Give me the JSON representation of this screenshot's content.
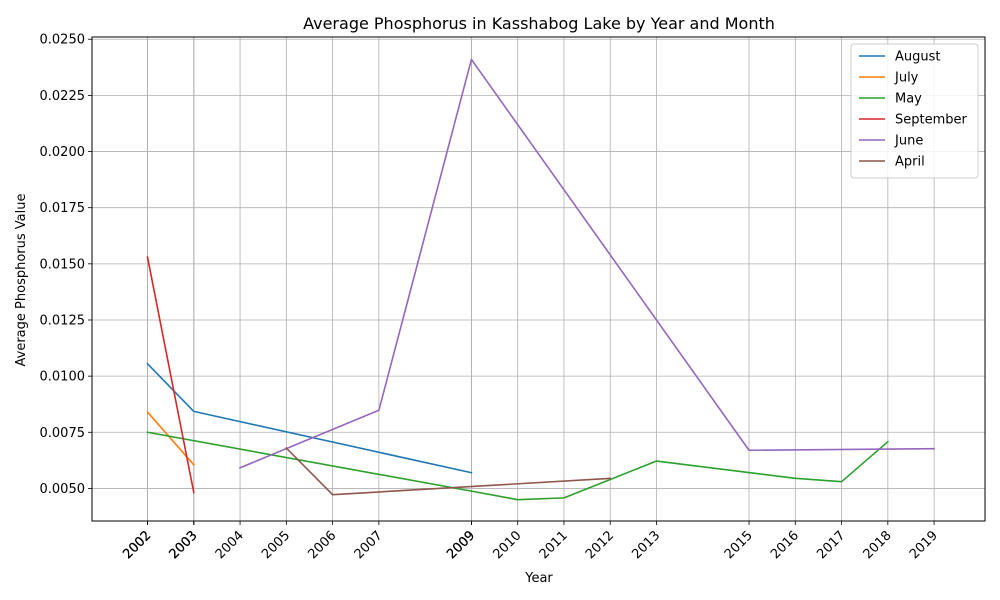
{
  "chart_data": {
    "type": "line",
    "title": "Average Phosphorus in Kasshabog Lake by Year and Month",
    "xlabel": "Year",
    "ylabel": "Average Phosphorus Value",
    "xlim": [
      2000.8,
      2020.1
    ],
    "ylim": [
      0.00355,
      0.0251
    ],
    "x_ticks": [
      "2002",
      "2002",
      "2002",
      "2003",
      "2003",
      "2003",
      "2004",
      "2005",
      "2006",
      "2007",
      "2009",
      "2009",
      "2009",
      "2010",
      "2011",
      "2012",
      "2013",
      "2015",
      "2016",
      "2017",
      "2018",
      "2019"
    ],
    "x_tick_values": [
      2002,
      2002,
      2002,
      2003,
      2003,
      2003,
      2004,
      2005,
      2006,
      2007,
      2009,
      2009,
      2009,
      2010,
      2011,
      2012,
      2013,
      2015,
      2016,
      2017,
      2018,
      2019
    ],
    "y_ticks": [
      "0.0050",
      "0.0075",
      "0.0100",
      "0.0125",
      "0.0150",
      "0.0175",
      "0.0200",
      "0.0225",
      "0.0250"
    ],
    "y_tick_values": [
      0.005,
      0.0075,
      0.01,
      0.0125,
      0.015,
      0.0175,
      0.02,
      0.0225,
      0.025
    ],
    "grid": true,
    "legend_position": "top-right",
    "series": [
      {
        "name": "August",
        "color": "#1f77b4",
        "x": [
          2002,
          2003,
          2009
        ],
        "y": [
          0.01055,
          0.00843,
          0.0057
        ]
      },
      {
        "name": "July",
        "color": "#ff7f0e",
        "x": [
          2002,
          2003
        ],
        "y": [
          0.0084,
          0.00605
        ]
      },
      {
        "name": "May",
        "color": "#2ca02c",
        "x": [
          2002,
          2009,
          2010,
          2011,
          2012,
          2013,
          2016,
          2017,
          2018
        ],
        "y": [
          0.0075,
          0.00488,
          0.0045,
          0.00458,
          0.0054,
          0.00622,
          0.00545,
          0.0053,
          0.00708
        ]
      },
      {
        "name": "September",
        "color": "#d62728",
        "x": [
          2002,
          2003
        ],
        "y": [
          0.0153,
          0.00482
        ]
      },
      {
        "name": "June",
        "color": "#9467bd",
        "x": [
          2004,
          2007,
          2009,
          2015,
          2019
        ],
        "y": [
          0.00592,
          0.00848,
          0.0241,
          0.0067,
          0.00677
        ]
      },
      {
        "name": "April",
        "color": "#8c564b",
        "x": [
          2005,
          2006,
          2012
        ],
        "y": [
          0.0068,
          0.00472,
          0.00545
        ]
      }
    ]
  }
}
